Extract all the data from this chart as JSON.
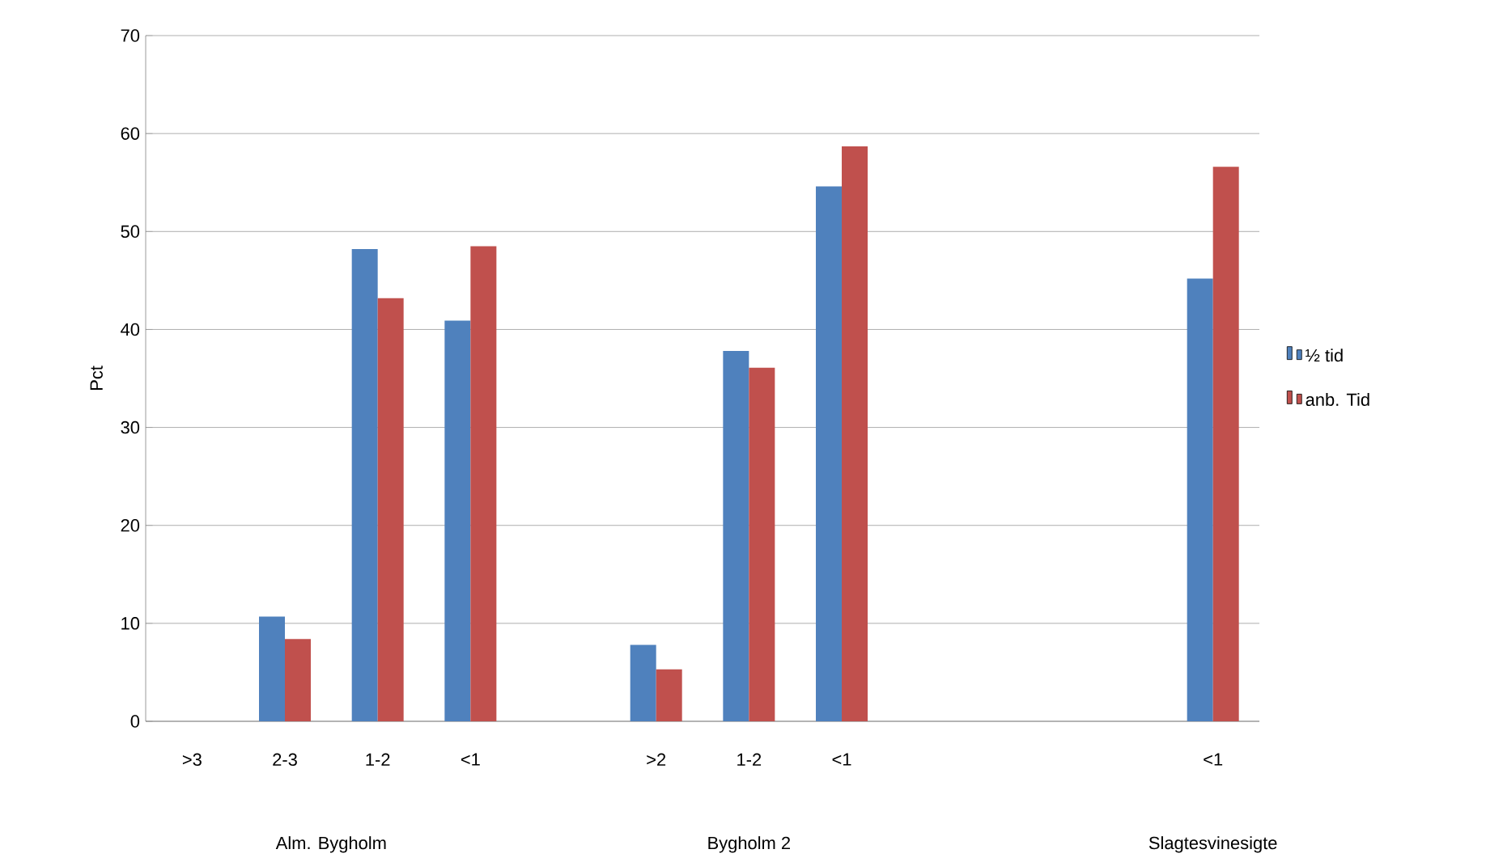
{
  "chart_data": {
    "type": "bar",
    "ylabel": "Pct",
    "categories": [
      ">3",
      "2-3",
      "1-2",
      "<1",
      null,
      ">2",
      "1-2",
      "<1",
      null,
      null,
      null,
      "<1"
    ],
    "series": [
      {
        "name": "½ tid",
        "color": "#4f81bd",
        "values": [
          null,
          10.7,
          48.2,
          40.9,
          null,
          7.8,
          37.8,
          54.6,
          null,
          null,
          null,
          45.2
        ]
      },
      {
        "name": "anb. Tid",
        "color": "#c0504d",
        "values": [
          null,
          8.4,
          43.2,
          48.5,
          null,
          5.3,
          36.1,
          58.7,
          null,
          null,
          null,
          56.6
        ]
      }
    ],
    "annotations": [
      "Alm. Bygholm",
      "Bygholm 2",
      "Slagtesvinesigte"
    ],
    "ylim": [
      0,
      70
    ],
    "yticks": [
      0,
      10,
      20,
      30,
      40,
      50,
      60,
      70
    ],
    "grid": "y",
    "legend": "right"
  }
}
